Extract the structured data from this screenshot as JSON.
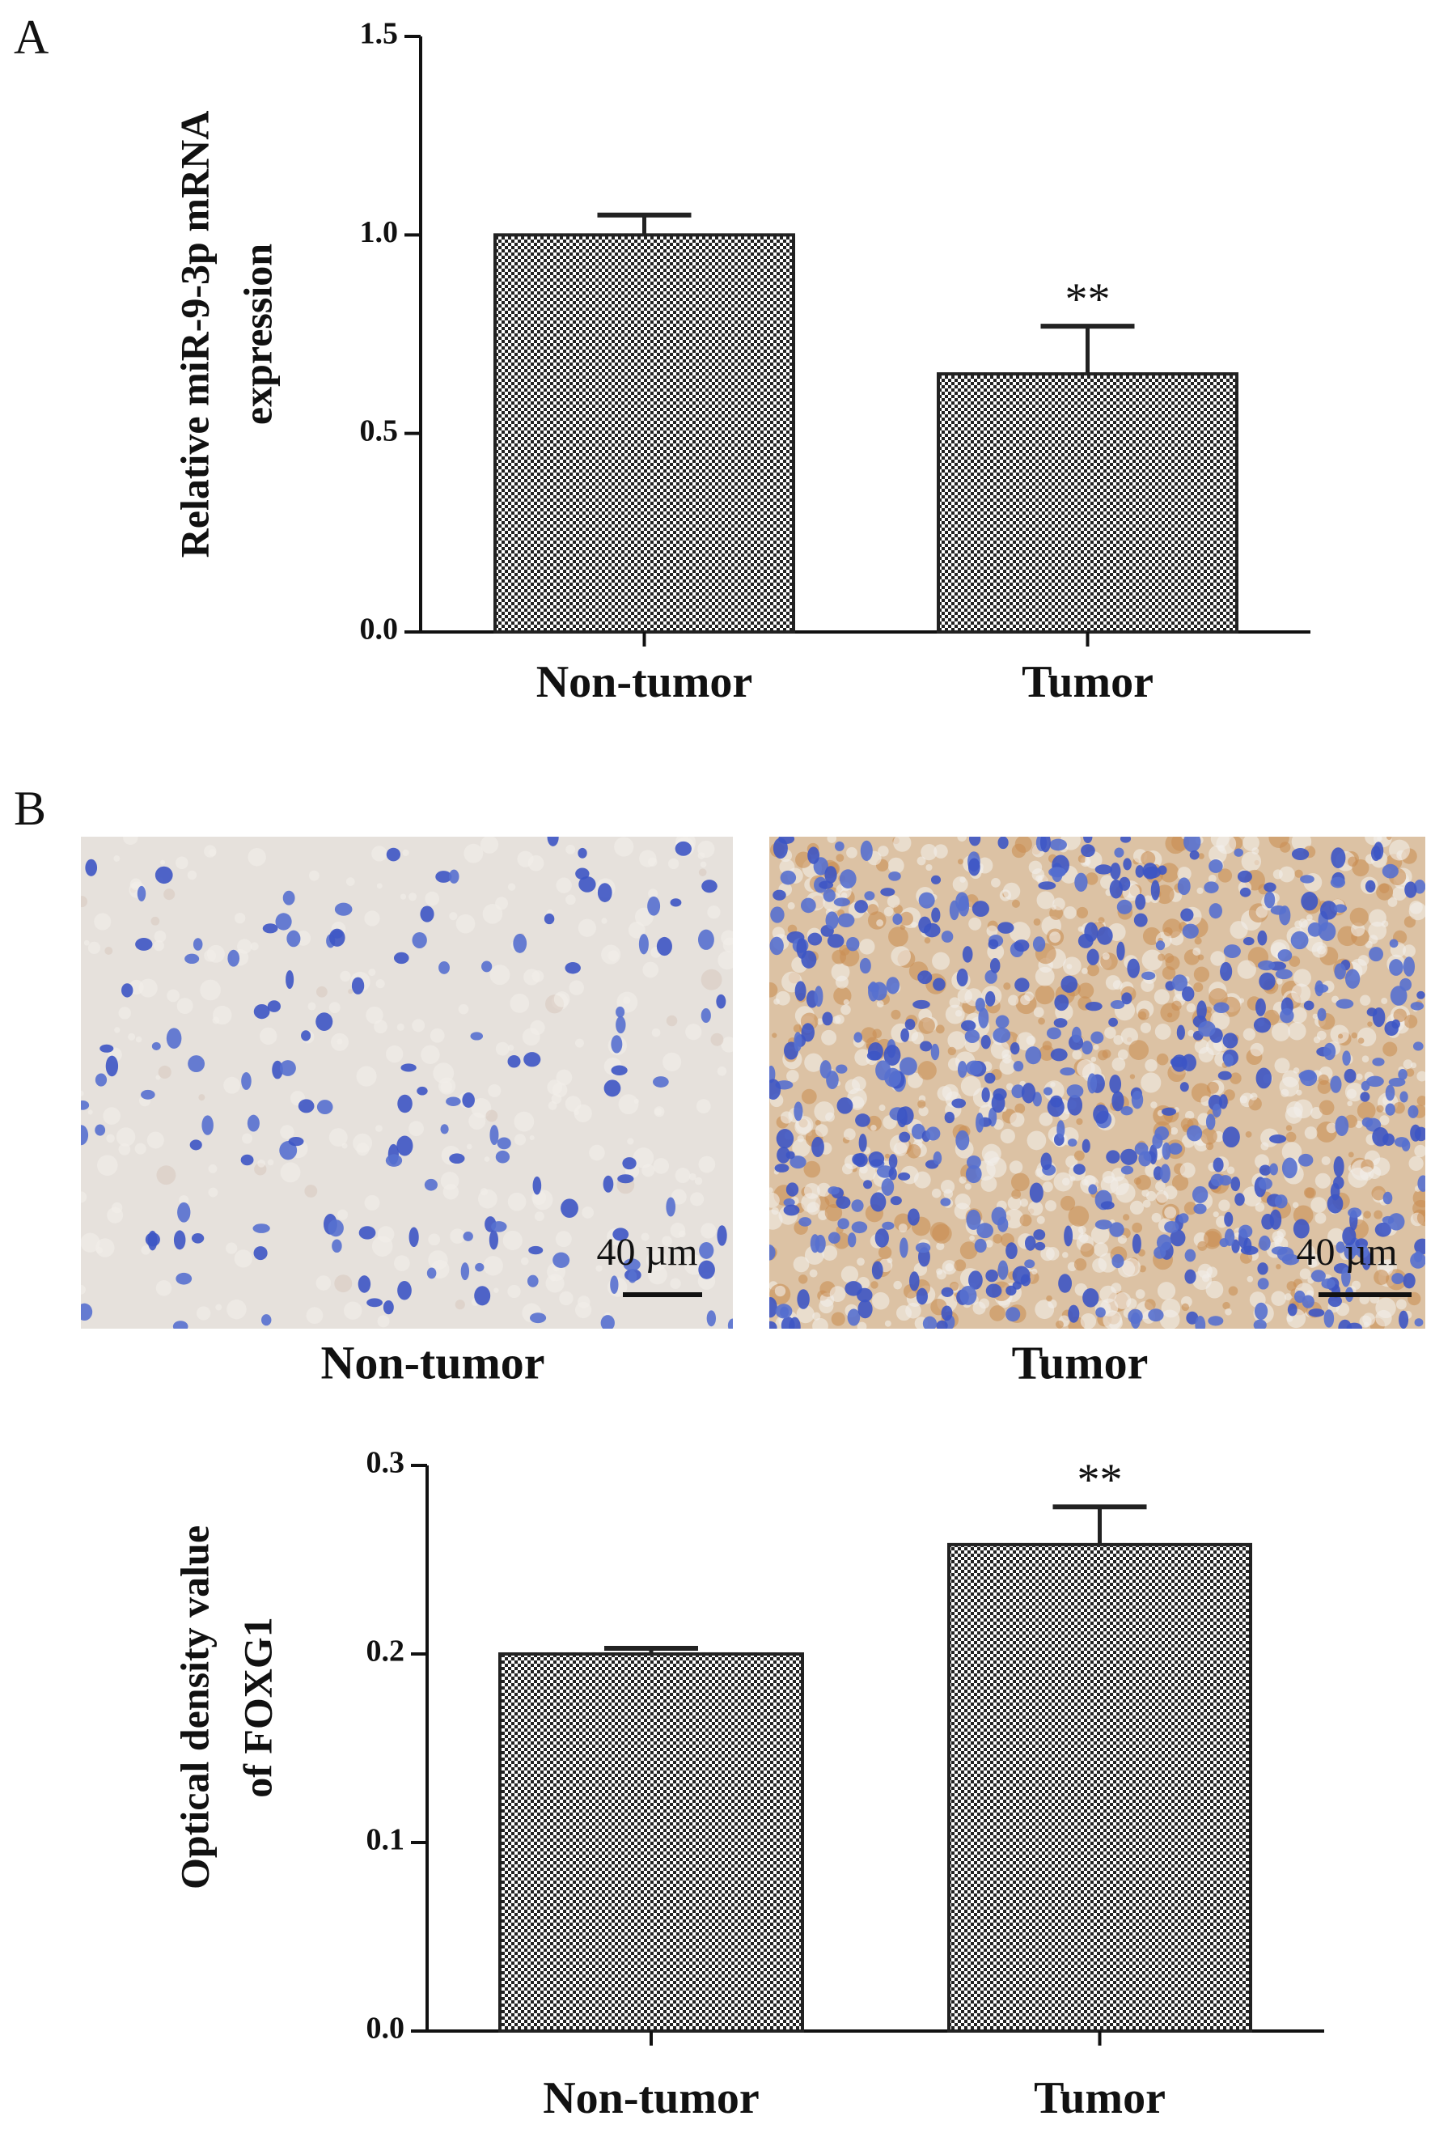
{
  "panel_labels": [
    "A",
    "B"
  ],
  "micrographs": [
    {
      "caption": "Non-tumor",
      "scale_bar": "40 µm"
    },
    {
      "caption": "Tumor",
      "scale_bar": "40 µm"
    }
  ],
  "chart_data": [
    {
      "type": "bar",
      "y_label": [
        "Relative miR-9-3p mRNA",
        "expression"
      ],
      "categories": [
        "Non-tumor",
        "Tumor"
      ],
      "values": [
        1.0,
        0.65
      ],
      "errors": [
        0.05,
        0.12
      ],
      "significance": [
        null,
        "**"
      ],
      "ylim": [
        0,
        1.5
      ],
      "yticks": [
        {
          "value": 0,
          "label": "0.0"
        },
        {
          "value": 0.5,
          "label": "0.5"
        },
        {
          "value": 1,
          "label": "1.0"
        },
        {
          "value": 1.5,
          "label": "1.5"
        }
      ],
      "color": "#222222"
    },
    {
      "type": "bar",
      "y_label": [
        "Optical density value",
        "of FOXG1"
      ],
      "categories": [
        "Non-tumor",
        "Tumor"
      ],
      "values": [
        0.2,
        0.258
      ],
      "errors": [
        0.003,
        0.02
      ],
      "significance": [
        null,
        "**"
      ],
      "ylim": [
        0,
        0.3
      ],
      "yticks": [
        {
          "value": 0,
          "label": "0.0"
        },
        0.1,
        0.2,
        0.3
      ],
      "color": "#222222"
    }
  ]
}
